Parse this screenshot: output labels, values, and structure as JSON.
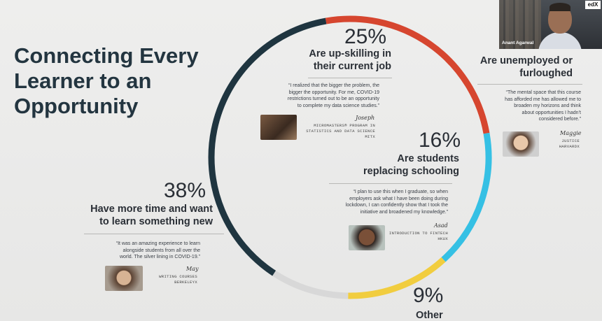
{
  "slide": {
    "title": "Connecting Every Learner to an Opportunity"
  },
  "colors": {
    "ring_red": "#d6462f",
    "ring_blue": "#35c0e4",
    "ring_yellow": "#f1cd3f",
    "ring_gray": "#d8d8d8",
    "ring_dark": "#1f3540"
  },
  "segments": [
    {
      "name": "upskilling",
      "percent": 25,
      "color": "#d6462f"
    },
    {
      "name": "students",
      "percent": 16,
      "color": "#35c0e4"
    },
    {
      "name": "unemployed",
      "percent": 12,
      "color": "#f1cd3f"
    },
    {
      "name": "other",
      "percent": 9,
      "color": "#d8d8d8"
    },
    {
      "name": "more-time",
      "percent": 38,
      "color": "#1f3540"
    }
  ],
  "stats": {
    "upskilling": {
      "pct": "25%",
      "label_l1": "Are up-skilling in",
      "label_l2": "their current job",
      "quote": [
        "“I realized that the bigger the problem, the",
        "bigger the opportunity. For me, COVID-19",
        "restrictions turned out to be an opportunity",
        "to complete my data science studies.”"
      ],
      "signature": "Joseph",
      "course": [
        "MicroMasters® Program in",
        "Statistics and Data Science",
        "MITx"
      ]
    },
    "unemployed": {
      "label_l1": "Are unemployed or",
      "label_l2": "furloughed",
      "quote": [
        "“The mental space that this course",
        "has afforded me has allowed me to",
        "broaden my horizons and think",
        "about opportunities I hadn’t",
        "considered before.”"
      ],
      "signature": "Maggie",
      "course": [
        "Justice",
        "HarvardX"
      ]
    },
    "students": {
      "pct": "16%",
      "label_l1": "Are students",
      "label_l2": "replacing schooling",
      "quote": [
        "“I plan to use this when I graduate, so when",
        "employers ask what I have been doing during",
        "lockdown, I can confidently show that I took the",
        "initiative and broadened my knowledge.”"
      ],
      "signature": "Asad",
      "course": [
        "Introduction to FinTech",
        "HKUx"
      ]
    },
    "more_time": {
      "pct": "38%",
      "label_l1": "Have more time and want",
      "label_l2": "to learn something new",
      "quote": [
        "“It was an amazing experience to learn",
        "alongside students from all over the",
        "world. The silver lining in COVID-19.”"
      ],
      "signature": "May",
      "course": [
        "Writing Courses",
        "BerkeleyX"
      ]
    },
    "other": {
      "pct": "9%",
      "label": "Other"
    }
  },
  "video": {
    "presenter_name": "Anant Agarwal",
    "logo": "edX"
  }
}
